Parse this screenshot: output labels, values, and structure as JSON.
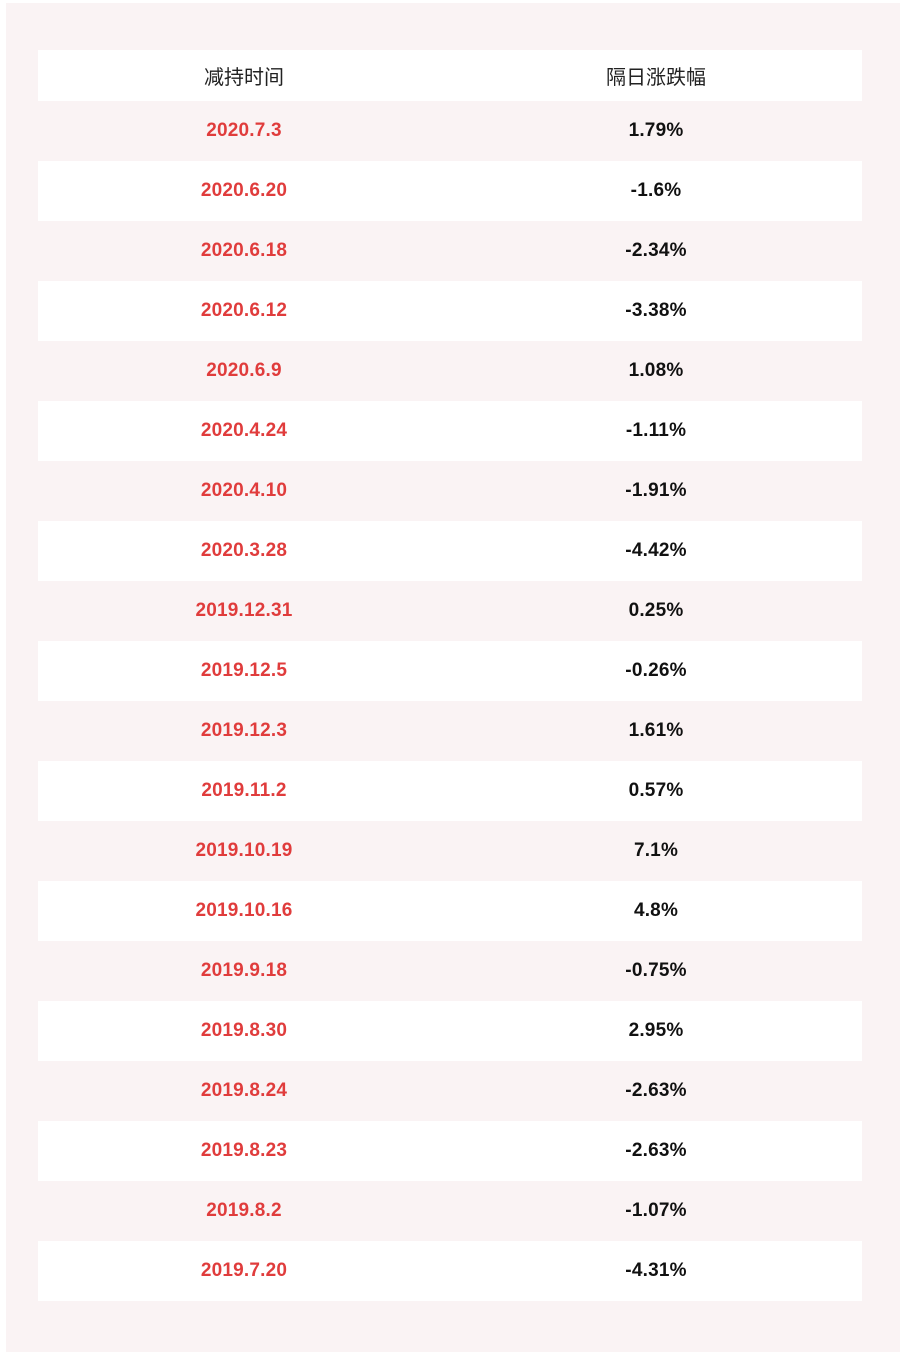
{
  "colors": {
    "page_background": "#faf3f4",
    "row_white": "#ffffff",
    "date_red": "#e03c3c",
    "value_dark": "#111111",
    "header_text": "#222222"
  },
  "chart_data": {
    "type": "table",
    "title": "",
    "columns": [
      "减持时间",
      "隔日涨跌幅"
    ],
    "rows": [
      {
        "date": "2020.7.3",
        "change": "1.79%"
      },
      {
        "date": "2020.6.20",
        "change": "-1.6%"
      },
      {
        "date": "2020.6.18",
        "change": "-2.34%"
      },
      {
        "date": "2020.6.12",
        "change": "-3.38%"
      },
      {
        "date": "2020.6.9",
        "change": "1.08%"
      },
      {
        "date": "2020.4.24",
        "change": "-1.11%"
      },
      {
        "date": "2020.4.10",
        "change": "-1.91%"
      },
      {
        "date": "2020.3.28",
        "change": "-4.42%"
      },
      {
        "date": "2019.12.31",
        "change": "0.25%"
      },
      {
        "date": "2019.12.5",
        "change": "-0.26%"
      },
      {
        "date": "2019.12.3",
        "change": "1.61%"
      },
      {
        "date": "2019.11.2",
        "change": "0.57%"
      },
      {
        "date": "2019.10.19",
        "change": "7.1%"
      },
      {
        "date": "2019.10.16",
        "change": "4.8%"
      },
      {
        "date": "2019.9.18",
        "change": "-0.75%"
      },
      {
        "date": "2019.8.30",
        "change": "2.95%"
      },
      {
        "date": "2019.8.24",
        "change": "-2.63%"
      },
      {
        "date": "2019.8.23",
        "change": "-2.63%"
      },
      {
        "date": "2019.8.2",
        "change": "-1.07%"
      },
      {
        "date": "2019.7.20",
        "change": "-4.31%"
      }
    ]
  }
}
